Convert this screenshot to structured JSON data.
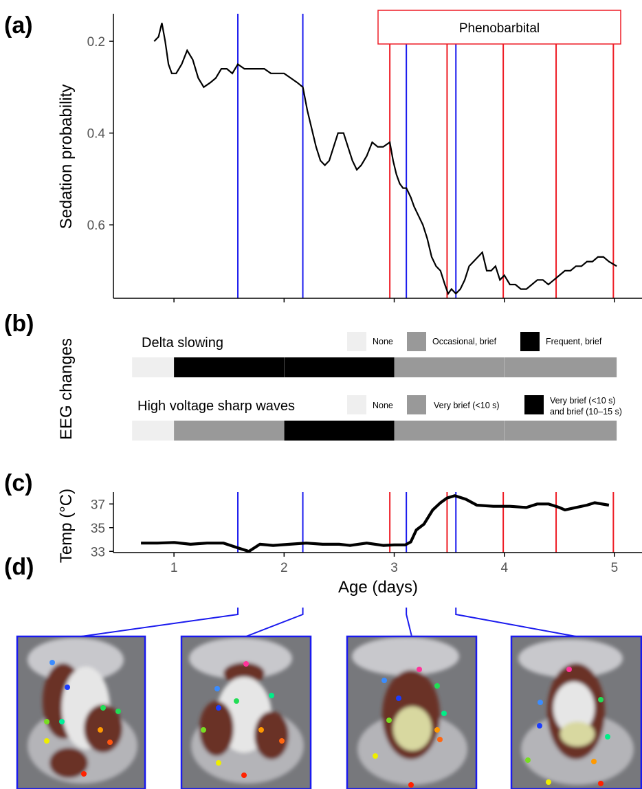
{
  "panel_labels": [
    "(a)",
    "(b)",
    "(c)",
    "(d)"
  ],
  "colors": {
    "blue": "#1a1aee",
    "red": "#ee1c25",
    "none": "#efefef",
    "mid": "#999999",
    "dark": "#000000"
  },
  "chart_data": [
    {
      "panel": "(a)",
      "type": "line",
      "ylabel": "Sedation probability",
      "y_reversed": true,
      "ylim": [
        0.14,
        0.76
      ],
      "xlim": [
        0.45,
        5.25
      ],
      "yticks": [
        0.2,
        0.4,
        0.6
      ],
      "ytick_labels": [
        "0.2",
        "0.4",
        "0.6"
      ],
      "xticks": [
        1,
        2,
        3,
        4,
        5
      ],
      "annotation": "Phenobarbital",
      "blue_lines_x": [
        1.58,
        2.17,
        3.11,
        3.56
      ],
      "red_lines_x": [
        2.96,
        3.48,
        3.99,
        4.47,
        4.99
      ],
      "series": [
        {
          "x": [
            0.82,
            0.86,
            0.89,
            0.92,
            0.95,
            0.98,
            1.02,
            1.07,
            1.12,
            1.17,
            1.22,
            1.27,
            1.33,
            1.38,
            1.43,
            1.48,
            1.53,
            1.58,
            1.64,
            1.7,
            1.76,
            1.82,
            1.88,
            1.94,
            2.0,
            2.06,
            2.12,
            2.17,
            2.21,
            2.25,
            2.29,
            2.33,
            2.37,
            2.41,
            2.45,
            2.49,
            2.54,
            2.58,
            2.62,
            2.66,
            2.7,
            2.75,
            2.8,
            2.85,
            2.9,
            2.96,
            2.99,
            3.02,
            3.05,
            3.08,
            3.11,
            3.15,
            3.18,
            3.22,
            3.26,
            3.3,
            3.34,
            3.38,
            3.42,
            3.46,
            3.49,
            3.52,
            3.56,
            3.6,
            3.64,
            3.68,
            3.72,
            3.76,
            3.8,
            3.84,
            3.88,
            3.92,
            3.96,
            4.0,
            4.05,
            4.1,
            4.15,
            4.2,
            4.25,
            4.3,
            4.35,
            4.4,
            4.45,
            4.5,
            4.55,
            4.6,
            4.65,
            4.7,
            4.75,
            4.8,
            4.85,
            4.9,
            4.95,
            5.02
          ],
          "y": [
            0.2,
            0.19,
            0.16,
            0.2,
            0.25,
            0.27,
            0.27,
            0.25,
            0.22,
            0.24,
            0.28,
            0.3,
            0.29,
            0.28,
            0.26,
            0.26,
            0.27,
            0.25,
            0.26,
            0.26,
            0.26,
            0.26,
            0.27,
            0.27,
            0.27,
            0.28,
            0.29,
            0.3,
            0.35,
            0.39,
            0.43,
            0.46,
            0.47,
            0.46,
            0.43,
            0.4,
            0.4,
            0.43,
            0.46,
            0.48,
            0.47,
            0.45,
            0.42,
            0.43,
            0.43,
            0.42,
            0.46,
            0.49,
            0.51,
            0.52,
            0.52,
            0.54,
            0.56,
            0.58,
            0.6,
            0.63,
            0.67,
            0.69,
            0.7,
            0.73,
            0.75,
            0.74,
            0.75,
            0.74,
            0.72,
            0.69,
            0.68,
            0.67,
            0.66,
            0.7,
            0.7,
            0.69,
            0.72,
            0.71,
            0.73,
            0.73,
            0.74,
            0.74,
            0.73,
            0.72,
            0.72,
            0.73,
            0.72,
            0.71,
            0.7,
            0.7,
            0.69,
            0.69,
            0.68,
            0.68,
            0.67,
            0.67,
            0.68,
            0.69
          ]
        }
      ]
    },
    {
      "panel": "(b)",
      "type": "heatmap",
      "ylabel": "EEG changes",
      "xlim": [
        0.45,
        5.25
      ],
      "rows": [
        {
          "name": "Delta slowing",
          "legend": [
            {
              "label": "None",
              "color": "#efefef"
            },
            {
              "label": "Occasional, brief",
              "color": "#999999"
            },
            {
              "label": "Frequent, brief",
              "color": "#000000"
            }
          ],
          "segments": [
            {
              "start": 0.62,
              "end": 1.0,
              "level": "none"
            },
            {
              "start": 1.0,
              "end": 2.0,
              "level": "dark"
            },
            {
              "start": 2.0,
              "end": 3.0,
              "level": "dark"
            },
            {
              "start": 3.0,
              "end": 4.0,
              "level": "mid"
            },
            {
              "start": 4.0,
              "end": 5.02,
              "level": "mid"
            }
          ]
        },
        {
          "name": "High voltage sharp waves",
          "legend": [
            {
              "label": "None",
              "color": "#efefef"
            },
            {
              "label": "Very brief (<10 s)",
              "color": "#999999"
            },
            {
              "label": "Very brief (<10 s)",
              "label2": "and brief (10–15 s)",
              "color": "#000000"
            }
          ],
          "segments": [
            {
              "start": 0.62,
              "end": 1.0,
              "level": "none"
            },
            {
              "start": 1.0,
              "end": 2.0,
              "level": "mid"
            },
            {
              "start": 2.0,
              "end": 3.0,
              "level": "dark"
            },
            {
              "start": 3.0,
              "end": 4.0,
              "level": "mid"
            },
            {
              "start": 4.0,
              "end": 5.02,
              "level": "mid"
            }
          ]
        }
      ]
    },
    {
      "panel": "(c)",
      "type": "line",
      "ylabel": "Temp (°C)",
      "xlabel": "Age (days)",
      "ylim": [
        32.9,
        38.0
      ],
      "xlim": [
        0.45,
        5.25
      ],
      "yticks": [
        33,
        35,
        37
      ],
      "ytick_labels": [
        "33",
        "35",
        "37"
      ],
      "xticks": [
        1,
        2,
        3,
        4,
        5
      ],
      "xtick_labels": [
        "1",
        "2",
        "3",
        "4",
        "5"
      ],
      "blue_lines_x": [
        1.58,
        2.17,
        3.11,
        3.56
      ],
      "red_lines_x": [
        2.96,
        3.48,
        3.99,
        4.47,
        4.99
      ],
      "series": [
        {
          "x": [
            0.7,
            0.85,
            1.0,
            1.15,
            1.3,
            1.45,
            1.58,
            1.68,
            1.78,
            1.9,
            2.05,
            2.2,
            2.35,
            2.5,
            2.6,
            2.75,
            2.9,
            3.0,
            3.1,
            3.15,
            3.2,
            3.27,
            3.35,
            3.42,
            3.48,
            3.55,
            3.65,
            3.75,
            3.9,
            4.05,
            4.2,
            4.3,
            4.4,
            4.5,
            4.55,
            4.65,
            4.75,
            4.82,
            4.95
          ],
          "y": [
            33.7,
            33.7,
            33.75,
            33.6,
            33.7,
            33.7,
            33.3,
            33.0,
            33.6,
            33.5,
            33.6,
            33.7,
            33.6,
            33.6,
            33.5,
            33.7,
            33.5,
            33.55,
            33.55,
            33.8,
            34.8,
            35.3,
            36.5,
            37.1,
            37.5,
            37.7,
            37.4,
            36.9,
            36.8,
            36.8,
            36.7,
            37.0,
            37.0,
            36.7,
            36.5,
            36.7,
            36.9,
            37.1,
            36.9
          ]
        }
      ]
    }
  ],
  "panel_d": {
    "connector_color": "#1a1aee",
    "marker_x_days": [
      1.58,
      2.17,
      3.11,
      3.56
    ],
    "frames": [
      {
        "name": "video-frame-1"
      },
      {
        "name": "video-frame-2"
      },
      {
        "name": "video-frame-3"
      },
      {
        "name": "video-frame-4"
      }
    ]
  }
}
